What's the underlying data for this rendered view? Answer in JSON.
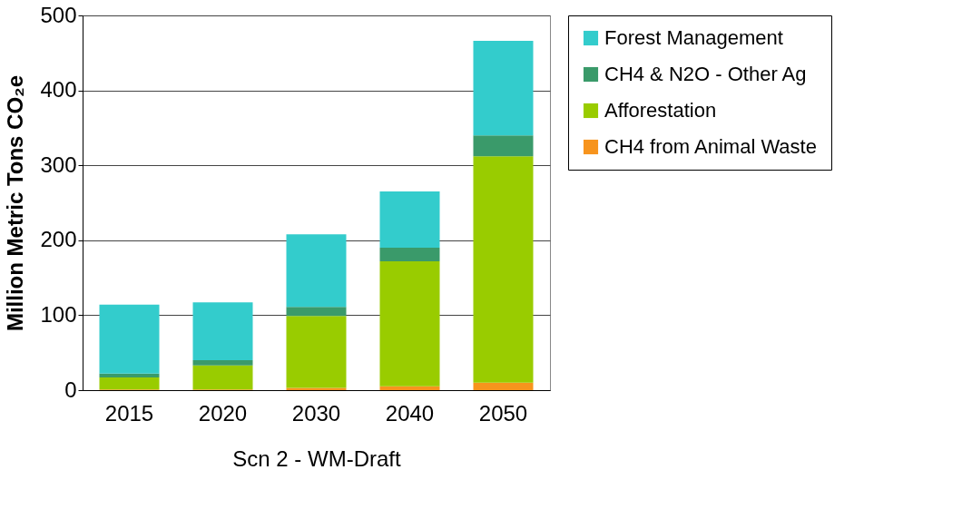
{
  "chart_data": {
    "type": "bar",
    "stacked": true,
    "ylabel": "Million Metric Tons CO₂e",
    "xlabel": "Scn 2 - WM-Draft",
    "categories": [
      "2015",
      "2020",
      "2030",
      "2040",
      "2050"
    ],
    "series": [
      {
        "name": "CH4 from Animal Waste",
        "color": "#f7941d",
        "values": [
          1,
          1,
          3,
          5,
          10
        ]
      },
      {
        "name": "Afforestation",
        "color": "#99cc00",
        "values": [
          16,
          32,
          96,
          167,
          302
        ]
      },
      {
        "name": "CH4 & N2O - Other Ag",
        "color": "#3a9a6a",
        "values": [
          5,
          7,
          12,
          18,
          28
        ]
      },
      {
        "name": "Forest Management",
        "color": "#33cccc",
        "values": [
          92,
          77,
          97,
          75,
          126
        ]
      }
    ],
    "ylim": [
      0,
      500
    ],
    "yticks": [
      0,
      100,
      200,
      300,
      400,
      500
    ],
    "grid": "y",
    "legend": "right"
  }
}
